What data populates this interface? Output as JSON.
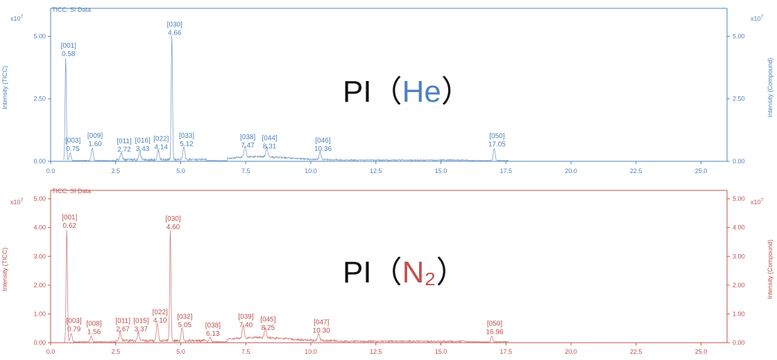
{
  "panels": [
    {
      "header": "TICC: SI Data",
      "color": "#4f81bd",
      "annotation_prefix": "PI（",
      "annotation_label": "He",
      "annotation_suffix": "）",
      "ylabel_left": "Intensity (TICC)",
      "ylabel_right": "Intensity (Compound)",
      "exponent_base": "x10",
      "exponent_power": "7",
      "ylim": [
        0,
        5.9
      ],
      "yticks": [
        0,
        2.5,
        5.0
      ],
      "ytick_labels": [
        "0.00",
        "2.50",
        "5.00"
      ],
      "peaks": [
        {
          "id": "[001]",
          "rt": "0.58",
          "x": 0.58,
          "y": 4.1
        },
        {
          "id": "[003]",
          "rt": "0.75",
          "x": 0.75,
          "y": 0.3
        },
        {
          "id": "[009]",
          "rt": "1.60",
          "x": 1.6,
          "y": 0.5
        },
        {
          "id": "[011]",
          "rt": "2.72",
          "x": 2.72,
          "y": 0.28
        },
        {
          "id": "[016]",
          "rt": "3.43",
          "x": 3.43,
          "y": 0.3
        },
        {
          "id": "[022]",
          "rt": "4.14",
          "x": 4.14,
          "y": 0.38
        },
        {
          "id": "[030]",
          "rt": "4.66",
          "x": 4.66,
          "y": 4.95
        },
        {
          "id": "[033]",
          "rt": "5.12",
          "x": 5.12,
          "y": 0.5
        },
        {
          "id": "[038]",
          "rt": "7.47",
          "x": 7.47,
          "y": 0.45
        },
        {
          "id": "[044]",
          "rt": "8.31",
          "x": 8.31,
          "y": 0.4
        },
        {
          "id": "[046]",
          "rt": "10.36",
          "x": 10.36,
          "y": 0.3
        },
        {
          "id": "[050]",
          "rt": "17.05",
          "x": 17.05,
          "y": 0.48
        }
      ]
    },
    {
      "header": "TICC: SI Data",
      "color": "#c0504d",
      "annotation_prefix": "PI（",
      "annotation_label": "N₂",
      "annotation_suffix": "）",
      "ylabel_left": "Intensity (TICC)",
      "ylabel_right": "Intensity (Compound)",
      "exponent_base": "x10",
      "exponent_power": "7",
      "ylim": [
        0,
        5.1
      ],
      "yticks": [
        0,
        1,
        2,
        3,
        4,
        5
      ],
      "ytick_labels": [
        "0.00",
        "1.00",
        "2.00",
        "3.00",
        "4.00",
        "5.00"
      ],
      "peaks": [
        {
          "id": "[001]",
          "rt": "0.62",
          "x": 0.62,
          "y": 3.9
        },
        {
          "id": "[003]",
          "rt": "0.79",
          "x": 0.79,
          "y": 0.3
        },
        {
          "id": "[008]",
          "rt": "1.56",
          "x": 1.56,
          "y": 0.2
        },
        {
          "id": "[011]",
          "rt": "2.67",
          "x": 2.67,
          "y": 0.3
        },
        {
          "id": "[015]",
          "rt": "3.37",
          "x": 3.37,
          "y": 0.3
        },
        {
          "id": "[022]",
          "rt": "4.10",
          "x": 4.1,
          "y": 0.6
        },
        {
          "id": "[030]",
          "rt": "4.60",
          "x": 4.6,
          "y": 3.85
        },
        {
          "id": "[032]",
          "rt": "5.05",
          "x": 5.05,
          "y": 0.45
        },
        {
          "id": "[038]",
          "rt": "6.13",
          "x": 6.13,
          "y": 0.15
        },
        {
          "id": "[039]",
          "rt": "7.40",
          "x": 7.4,
          "y": 0.45
        },
        {
          "id": "[045]",
          "rt": "8.25",
          "x": 8.25,
          "y": 0.35
        },
        {
          "id": "[047]",
          "rt": "10.30",
          "x": 10.3,
          "y": 0.25
        },
        {
          "id": "[050]",
          "rt": "16.96",
          "x": 16.96,
          "y": 0.2
        }
      ]
    }
  ],
  "chart_data": [
    {
      "type": "line",
      "title": "",
      "xlabel": "",
      "ylabel": "Intensity (TICC)",
      "xlim": [
        0,
        26
      ],
      "ylim": [
        0,
        5.9
      ],
      "xticks": [
        0,
        2.5,
        5,
        7.5,
        10,
        12.5,
        15,
        17.5,
        20,
        22.5,
        25
      ],
      "xtick_labels": [
        "0.0",
        "2.5",
        "5.0",
        "7.5",
        "10.0",
        "12.5",
        "15.0",
        "17.5",
        "20.0",
        "22.5",
        "25.0"
      ],
      "series": [
        {
          "x": [
            0.58,
            0.75,
            1.6,
            2.72,
            3.43,
            4.14,
            4.66,
            5.12,
            7.47,
            8.31,
            10.36,
            17.05
          ],
          "values": [
            4.1,
            0.3,
            0.5,
            0.28,
            0.3,
            0.38,
            4.95,
            0.5,
            0.45,
            0.4,
            0.3,
            0.48
          ]
        }
      ]
    },
    {
      "type": "line",
      "title": "",
      "xlabel": "",
      "ylabel": "Intensity (TICC)",
      "xlim": [
        0,
        26
      ],
      "ylim": [
        0,
        5.1
      ],
      "xticks": [
        0,
        2.5,
        5,
        7.5,
        10,
        12.5,
        15,
        17.5,
        20,
        22.5,
        25
      ],
      "xtick_labels": [
        "0.0",
        "2.5",
        "5.0",
        "7.5",
        "10.0",
        "12.5",
        "15.0",
        "17.5",
        "20.0",
        "22.5",
        "25.0"
      ],
      "series": [
        {
          "x": [
            0.62,
            0.79,
            1.56,
            2.67,
            3.37,
            4.1,
            4.6,
            5.05,
            6.13,
            7.4,
            8.25,
            10.3,
            16.96
          ],
          "values": [
            3.9,
            0.3,
            0.2,
            0.3,
            0.3,
            0.6,
            3.85,
            0.45,
            0.15,
            0.45,
            0.35,
            0.25,
            0.2
          ]
        }
      ]
    }
  ]
}
